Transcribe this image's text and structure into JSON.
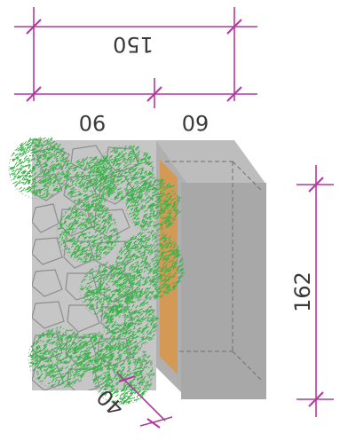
{
  "dimensions": {
    "top_total": "150",
    "left_section": "90",
    "right_section": "60",
    "height": "162",
    "bottom_offset": "40"
  },
  "colors": {
    "dimension_line": "#b03a9c",
    "stone_wall": "#c8c8c8",
    "block_front": "#a9a9a9",
    "block_top": "#bdbdbd",
    "insulation": "#d49a55",
    "foliage": "#3bb34a"
  }
}
